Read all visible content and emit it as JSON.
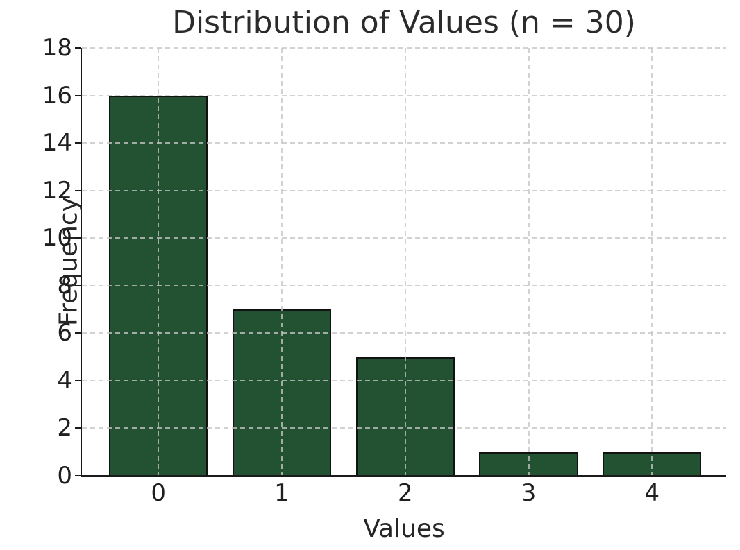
{
  "chart_data": {
    "type": "bar",
    "title": "Distribution of Values (n = 30)",
    "xlabel": "Values",
    "ylabel": "Frequency",
    "categories": [
      "0",
      "1",
      "2",
      "3",
      "4"
    ],
    "values": [
      16,
      7,
      5,
      1,
      1
    ],
    "n_total": 30,
    "yticks": [
      0,
      2,
      4,
      6,
      8,
      10,
      12,
      14,
      16,
      18
    ],
    "ylim": [
      0,
      18
    ],
    "xlim": [
      -0.62,
      4.6
    ],
    "bar_width": 0.8,
    "grid": "dashed, gray, drawn above bars, horizontal and vertical",
    "legend_position": "none",
    "colors": {
      "bar_fill": "#235233",
      "bar_edge": "#121212",
      "grid": "#c6c6c6",
      "text": "#262626",
      "spine": "#1a1a1a",
      "background": "#ffffff"
    }
  }
}
